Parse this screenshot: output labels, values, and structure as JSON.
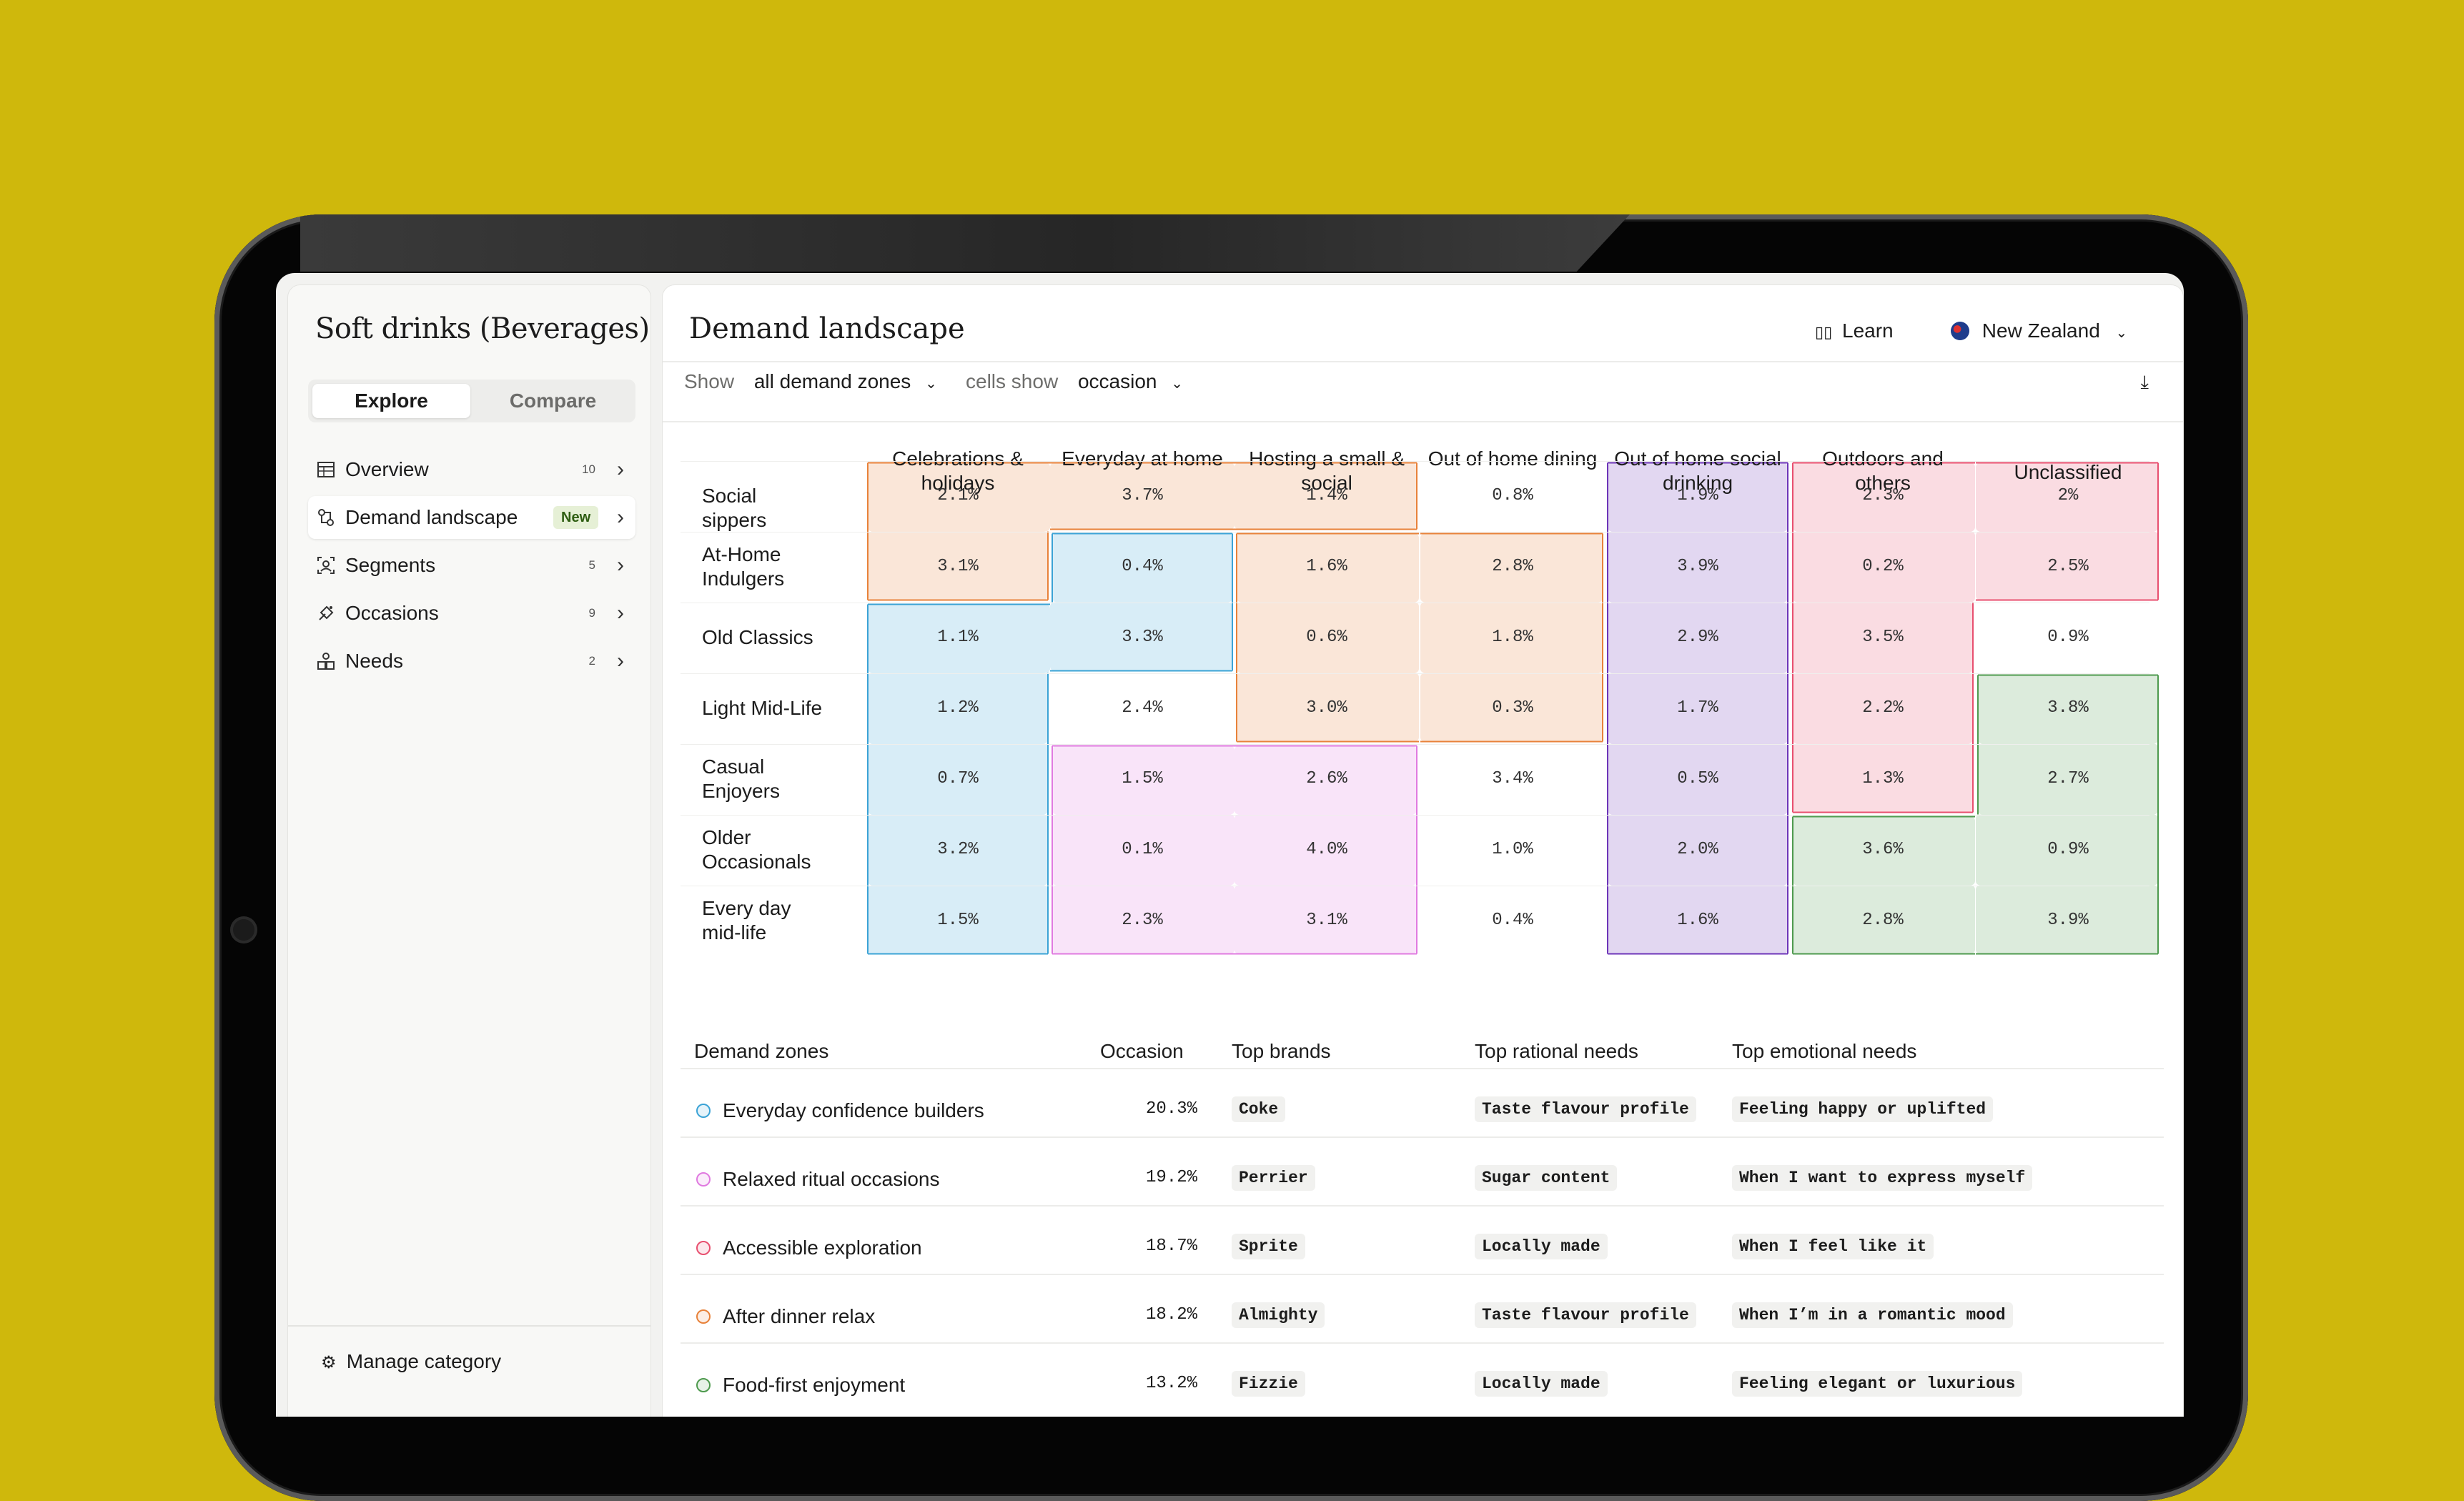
{
  "sidebar": {
    "title": "Soft drinks (Beverages)",
    "tabs": [
      "Explore",
      "Compare"
    ],
    "items": [
      {
        "label": "Overview",
        "count": "10",
        "icon": "table-icon"
      },
      {
        "label": "Demand landscape",
        "badge": "New",
        "icon": "landscape-icon"
      },
      {
        "label": "Segments",
        "count": "5",
        "icon": "segments-icon"
      },
      {
        "label": "Occasions",
        "count": "9",
        "icon": "occasions-icon"
      },
      {
        "label": "Needs",
        "count": "2",
        "icon": "needs-icon"
      }
    ],
    "footer": "Manage category"
  },
  "main": {
    "title": "Demand landscape",
    "learn": "Learn",
    "country": "New Zealand",
    "filters": {
      "show_label": "Show",
      "show_value": "all demand zones",
      "cells_label": "cells show",
      "cells_value": "occasion"
    }
  },
  "grid": {
    "columns": [
      "Celebrations & holidays",
      "Everyday at home",
      "Hosting a small & social",
      "Out of home dining",
      "Out of home social drinking",
      "Outdoors and others",
      "Unclassified"
    ],
    "rows": [
      "Social sippers",
      "At-Home Indulgers",
      "Old Classics",
      "Light Mid-Life",
      "Casual Enjoyers",
      "Older Occasionals",
      "Every day mid-life"
    ],
    "cells": [
      [
        "2.1%",
        "3.7%",
        "1.4%",
        "0.8%",
        "1.9%",
        "2.3%",
        "2%"
      ],
      [
        "3.1%",
        "0.4%",
        "1.6%",
        "2.8%",
        "3.9%",
        "0.2%",
        "2.5%"
      ],
      [
        "1.1%",
        "3.3%",
        "0.6%",
        "1.8%",
        "2.9%",
        "3.5%",
        "0.9%"
      ],
      [
        "1.2%",
        "2.4%",
        "3.0%",
        "0.3%",
        "1.7%",
        "2.2%",
        "3.8%"
      ],
      [
        "0.7%",
        "1.5%",
        "2.6%",
        "3.4%",
        "0.5%",
        "1.3%",
        "2.7%"
      ],
      [
        "3.2%",
        "0.1%",
        "4.0%",
        "1.0%",
        "2.0%",
        "3.6%",
        "0.9%"
      ],
      [
        "1.5%",
        "2.3%",
        "3.1%",
        "0.4%",
        "1.6%",
        "2.8%",
        "3.9%"
      ]
    ],
    "zone_colors": {
      "orange": "#E8823A",
      "blue": "#3BA3D6",
      "purple": "#6D35B8",
      "red": "#E84F6F",
      "pink": "#E07AE0",
      "green": "#4E9A4E"
    }
  },
  "table": {
    "headers": [
      "Demand zones",
      "Occasion",
      "Top brands",
      "Top rational needs",
      "Top emotional needs"
    ],
    "rows": [
      {
        "zone": "Everyday confidence builders",
        "color": "#3BA3D6",
        "occasion": "20.3%",
        "brand": "Coke",
        "rational": "Taste flavour profile",
        "emotional": "Feeling happy or uplifted"
      },
      {
        "zone": "Relaxed ritual occasions",
        "color": "#E07AE0",
        "occasion": "19.2%",
        "brand": "Perrier",
        "rational": "Sugar content",
        "emotional": "When I want to express myself"
      },
      {
        "zone": "Accessible exploration",
        "color": "#E84F6F",
        "occasion": "18.7%",
        "brand": "Sprite",
        "rational": "Locally made",
        "emotional": "When I feel like it"
      },
      {
        "zone": "After dinner relax",
        "color": "#E8823A",
        "occasion": "18.2%",
        "brand": "Almighty",
        "rational": "Taste flavour profile",
        "emotional": "When I’m in a romantic mood"
      },
      {
        "zone": "Food-first enjoyment",
        "color": "#4E9A4E",
        "occasion": "13.2%",
        "brand": "Fizzie",
        "rational": "Locally made",
        "emotional": "Feeling elegant or luxurious"
      }
    ]
  }
}
